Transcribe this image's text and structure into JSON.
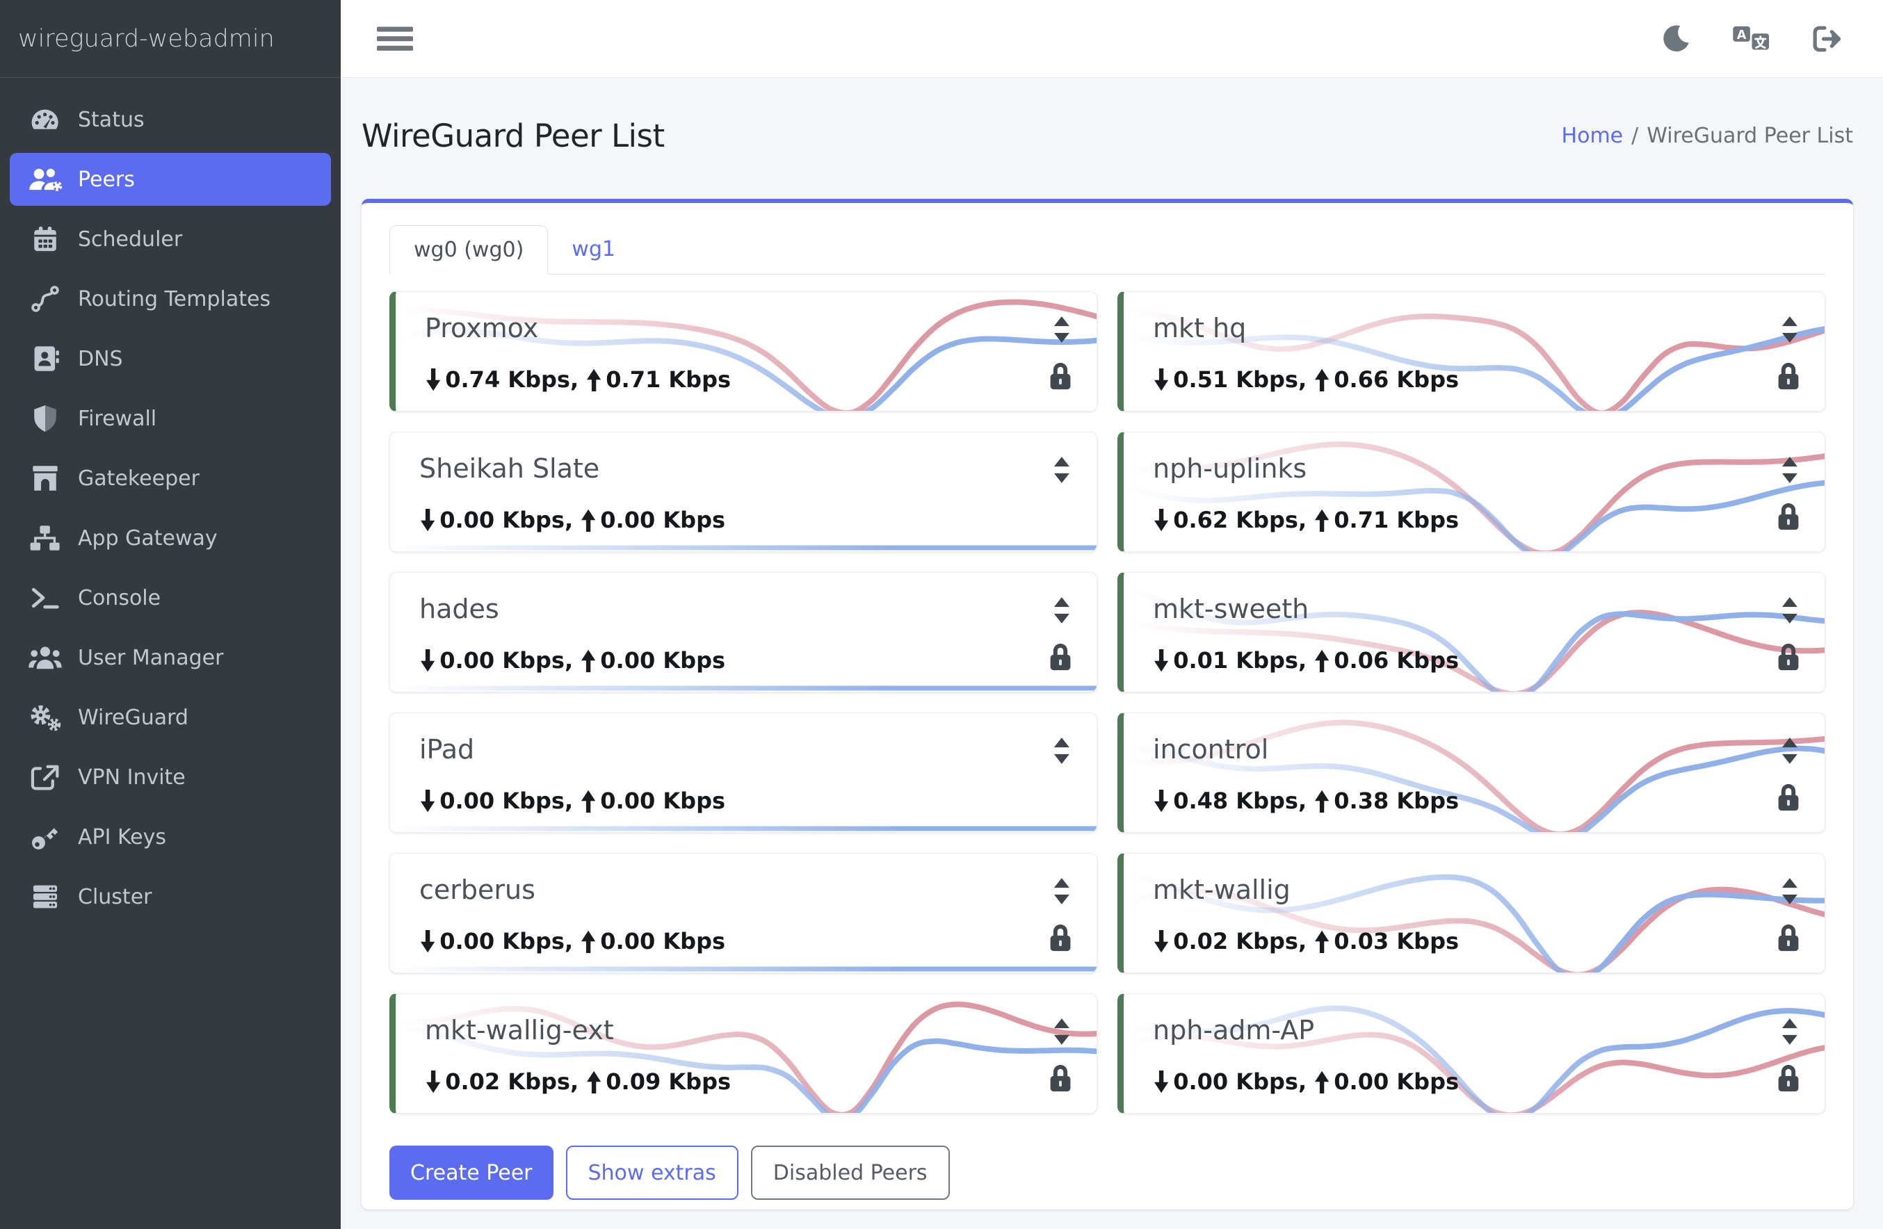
{
  "sidebar": {
    "title": "wireguard-webadmin",
    "items": [
      {
        "label": "Status",
        "icon": "gauge-icon",
        "active": false
      },
      {
        "label": "Peers",
        "icon": "users-gear-icon",
        "active": true
      },
      {
        "label": "Scheduler",
        "icon": "calendar-icon",
        "active": false
      },
      {
        "label": "Routing Templates",
        "icon": "route-icon",
        "active": false
      },
      {
        "label": "DNS",
        "icon": "address-book-icon",
        "active": false
      },
      {
        "label": "Firewall",
        "icon": "shield-icon",
        "active": false
      },
      {
        "label": "Gatekeeper",
        "icon": "archway-icon",
        "active": false
      },
      {
        "label": "App Gateway",
        "icon": "network-icon",
        "active": false
      },
      {
        "label": "Console",
        "icon": "terminal-icon",
        "active": false
      },
      {
        "label": "User Manager",
        "icon": "users-icon",
        "active": false
      },
      {
        "label": "WireGuard",
        "icon": "gears-icon",
        "active": false
      },
      {
        "label": "VPN Invite",
        "icon": "share-icon",
        "active": false
      },
      {
        "label": "API Keys",
        "icon": "key-icon",
        "active": false
      },
      {
        "label": "Cluster",
        "icon": "server-stack-icon",
        "active": false
      }
    ]
  },
  "topbar": {
    "hamburger_icon": "menu-icon",
    "icons": [
      {
        "name": "dark-mode-toggle",
        "icon": "moon-icon"
      },
      {
        "name": "language-menu",
        "icon": "language-icon"
      },
      {
        "name": "logout",
        "icon": "logout-icon"
      }
    ]
  },
  "page": {
    "title": "WireGuard Peer List",
    "breadcrumb": {
      "home": "Home",
      "separator": "/",
      "current": "WireGuard Peer List"
    }
  },
  "tabs": [
    {
      "label": "wg0 (wg0)",
      "active": true
    },
    {
      "label": "wg1",
      "active": false
    }
  ],
  "ui": {
    "stats_separator": ", "
  },
  "peers": [
    {
      "name": "Proxmox",
      "download": "0.74 Kbps",
      "upload": "0.71 Kbps",
      "online": true,
      "locked": true,
      "spark": "wavy"
    },
    {
      "name": "Sheikah Slate",
      "download": "0.00 Kbps",
      "upload": "0.00 Kbps",
      "online": false,
      "locked": false,
      "spark": "flat"
    },
    {
      "name": "hades",
      "download": "0.00 Kbps",
      "upload": "0.00 Kbps",
      "online": false,
      "locked": true,
      "spark": "flat"
    },
    {
      "name": "iPad",
      "download": "0.00 Kbps",
      "upload": "0.00 Kbps",
      "online": false,
      "locked": false,
      "spark": "flat"
    },
    {
      "name": "cerberus",
      "download": "0.00 Kbps",
      "upload": "0.00 Kbps",
      "online": false,
      "locked": true,
      "spark": "flat"
    },
    {
      "name": "mkt-wallig-ext",
      "download": "0.02 Kbps",
      "upload": "0.09 Kbps",
      "online": true,
      "locked": true,
      "spark": "wavy"
    },
    {
      "name": "mkt hq",
      "download": "0.51 Kbps",
      "upload": "0.66 Kbps",
      "online": true,
      "locked": true,
      "spark": "wavy"
    },
    {
      "name": "nph-uplinks",
      "download": "0.62 Kbps",
      "upload": "0.71 Kbps",
      "online": true,
      "locked": true,
      "spark": "wavy"
    },
    {
      "name": "mkt-sweeth",
      "download": "0.01 Kbps",
      "upload": "0.06 Kbps",
      "online": true,
      "locked": true,
      "spark": "wavy"
    },
    {
      "name": "incontrol",
      "download": "0.48 Kbps",
      "upload": "0.38 Kbps",
      "online": true,
      "locked": true,
      "spark": "wavy"
    },
    {
      "name": "mkt-wallig",
      "download": "0.02 Kbps",
      "upload": "0.03 Kbps",
      "online": true,
      "locked": true,
      "spark": "wavy"
    },
    {
      "name": "nph-adm-AP",
      "download": "0.00 Kbps",
      "upload": "0.00 Kbps",
      "online": true,
      "locked": true,
      "spark": "wavy"
    }
  ],
  "actions": [
    {
      "label": "Create Peer",
      "style": "primary"
    },
    {
      "label": "Show extras",
      "style": "outline-primary"
    },
    {
      "label": "Disabled Peers",
      "style": "outline-secondary"
    }
  ],
  "colors": {
    "accent": "#5b6cf0",
    "sidebar_bg": "#343a40",
    "online_green": "#4e7b52",
    "spark_blue": "#8fb0e8",
    "spark_red": "#dc98a3",
    "content_bg": "#f4f6f9"
  }
}
